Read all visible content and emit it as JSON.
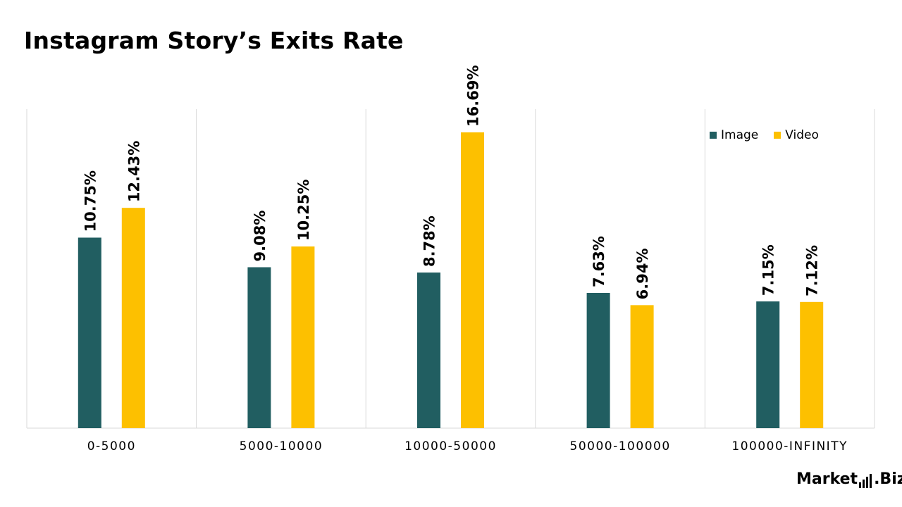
{
  "title": "Instagram Story’s Exits Rate",
  "brand": {
    "prefix": "Market",
    "suffix": ".Biz"
  },
  "colors": {
    "image": "#215e61",
    "video": "#fdc000",
    "grid": "#d9d9d9"
  },
  "chart_data": {
    "type": "bar",
    "categories": [
      "0-5000",
      "5000-10000",
      "10000-50000",
      "50000-100000",
      "100000-INFINITY"
    ],
    "series": [
      {
        "name": "Image",
        "values": [
          10.75,
          9.08,
          8.78,
          7.63,
          7.15
        ],
        "labels": [
          "10.75%",
          "9.08%",
          "8.78%",
          "7.63%",
          "7.15%"
        ]
      },
      {
        "name": "Video",
        "values": [
          12.43,
          10.25,
          16.69,
          6.94,
          7.12
        ],
        "labels": [
          "12.43%",
          "10.25%",
          "16.69%",
          "6.94%",
          "7.12%"
        ]
      }
    ],
    "ylim": [
      0,
      18
    ],
    "legend_position": "top-right",
    "grid": "vertical separators"
  }
}
